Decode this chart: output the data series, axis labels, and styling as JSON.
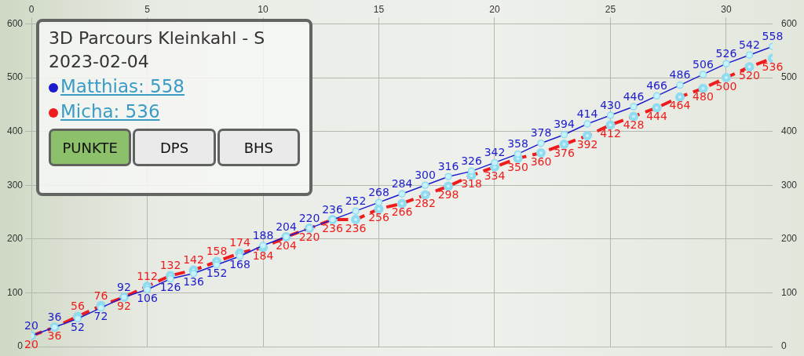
{
  "chart_data": {
    "type": "line",
    "title": "3D Parcours Kleinkahl - S",
    "subtitle": "2023-02-04",
    "annotations": [
      "PUNKTE",
      "DPS",
      "BHS"
    ],
    "x": [
      0,
      1,
      2,
      3,
      4,
      5,
      6,
      7,
      8,
      9,
      10,
      11,
      12,
      13,
      14,
      15,
      16,
      17,
      18,
      19,
      20,
      21,
      22,
      23,
      24,
      25,
      26,
      27,
      28,
      29,
      30,
      31,
      32
    ],
    "series": [
      {
        "name": "Matthias: 558",
        "color": "#1c1ccc",
        "line_style": "solid",
        "values": [
          20,
          36,
          52,
          72,
          92,
          106,
          126,
          136,
          152,
          168,
          188,
          204,
          220,
          236,
          252,
          268,
          284,
          300,
          316,
          326,
          342,
          358,
          378,
          394,
          414,
          430,
          446,
          466,
          486,
          506,
          526,
          542,
          558
        ]
      },
      {
        "name": "Micha: 536",
        "color": "#ee1c1c",
        "line_style": "dashed",
        "values": [
          20,
          36,
          56,
          76,
          92,
          112,
          132,
          142,
          158,
          174,
          184,
          204,
          220,
          236,
          236,
          256,
          266,
          282,
          298,
          318,
          334,
          350,
          360,
          376,
          392,
          412,
          428,
          444,
          464,
          480,
          500,
          520,
          536
        ]
      }
    ],
    "xlim": [
      0,
      32
    ],
    "xticks": [
      0,
      5,
      10,
      15,
      20,
      25,
      30
    ],
    "ylim": [
      0,
      600
    ],
    "yticks": [
      0,
      100,
      200,
      300,
      400,
      500,
      600
    ],
    "y2lim": [
      0,
      600
    ],
    "y2ticks": [
      0,
      100,
      200,
      300,
      400,
      500,
      600
    ],
    "grid": true,
    "legend": "top left",
    "marker": "circle",
    "data_labels": true
  }
}
